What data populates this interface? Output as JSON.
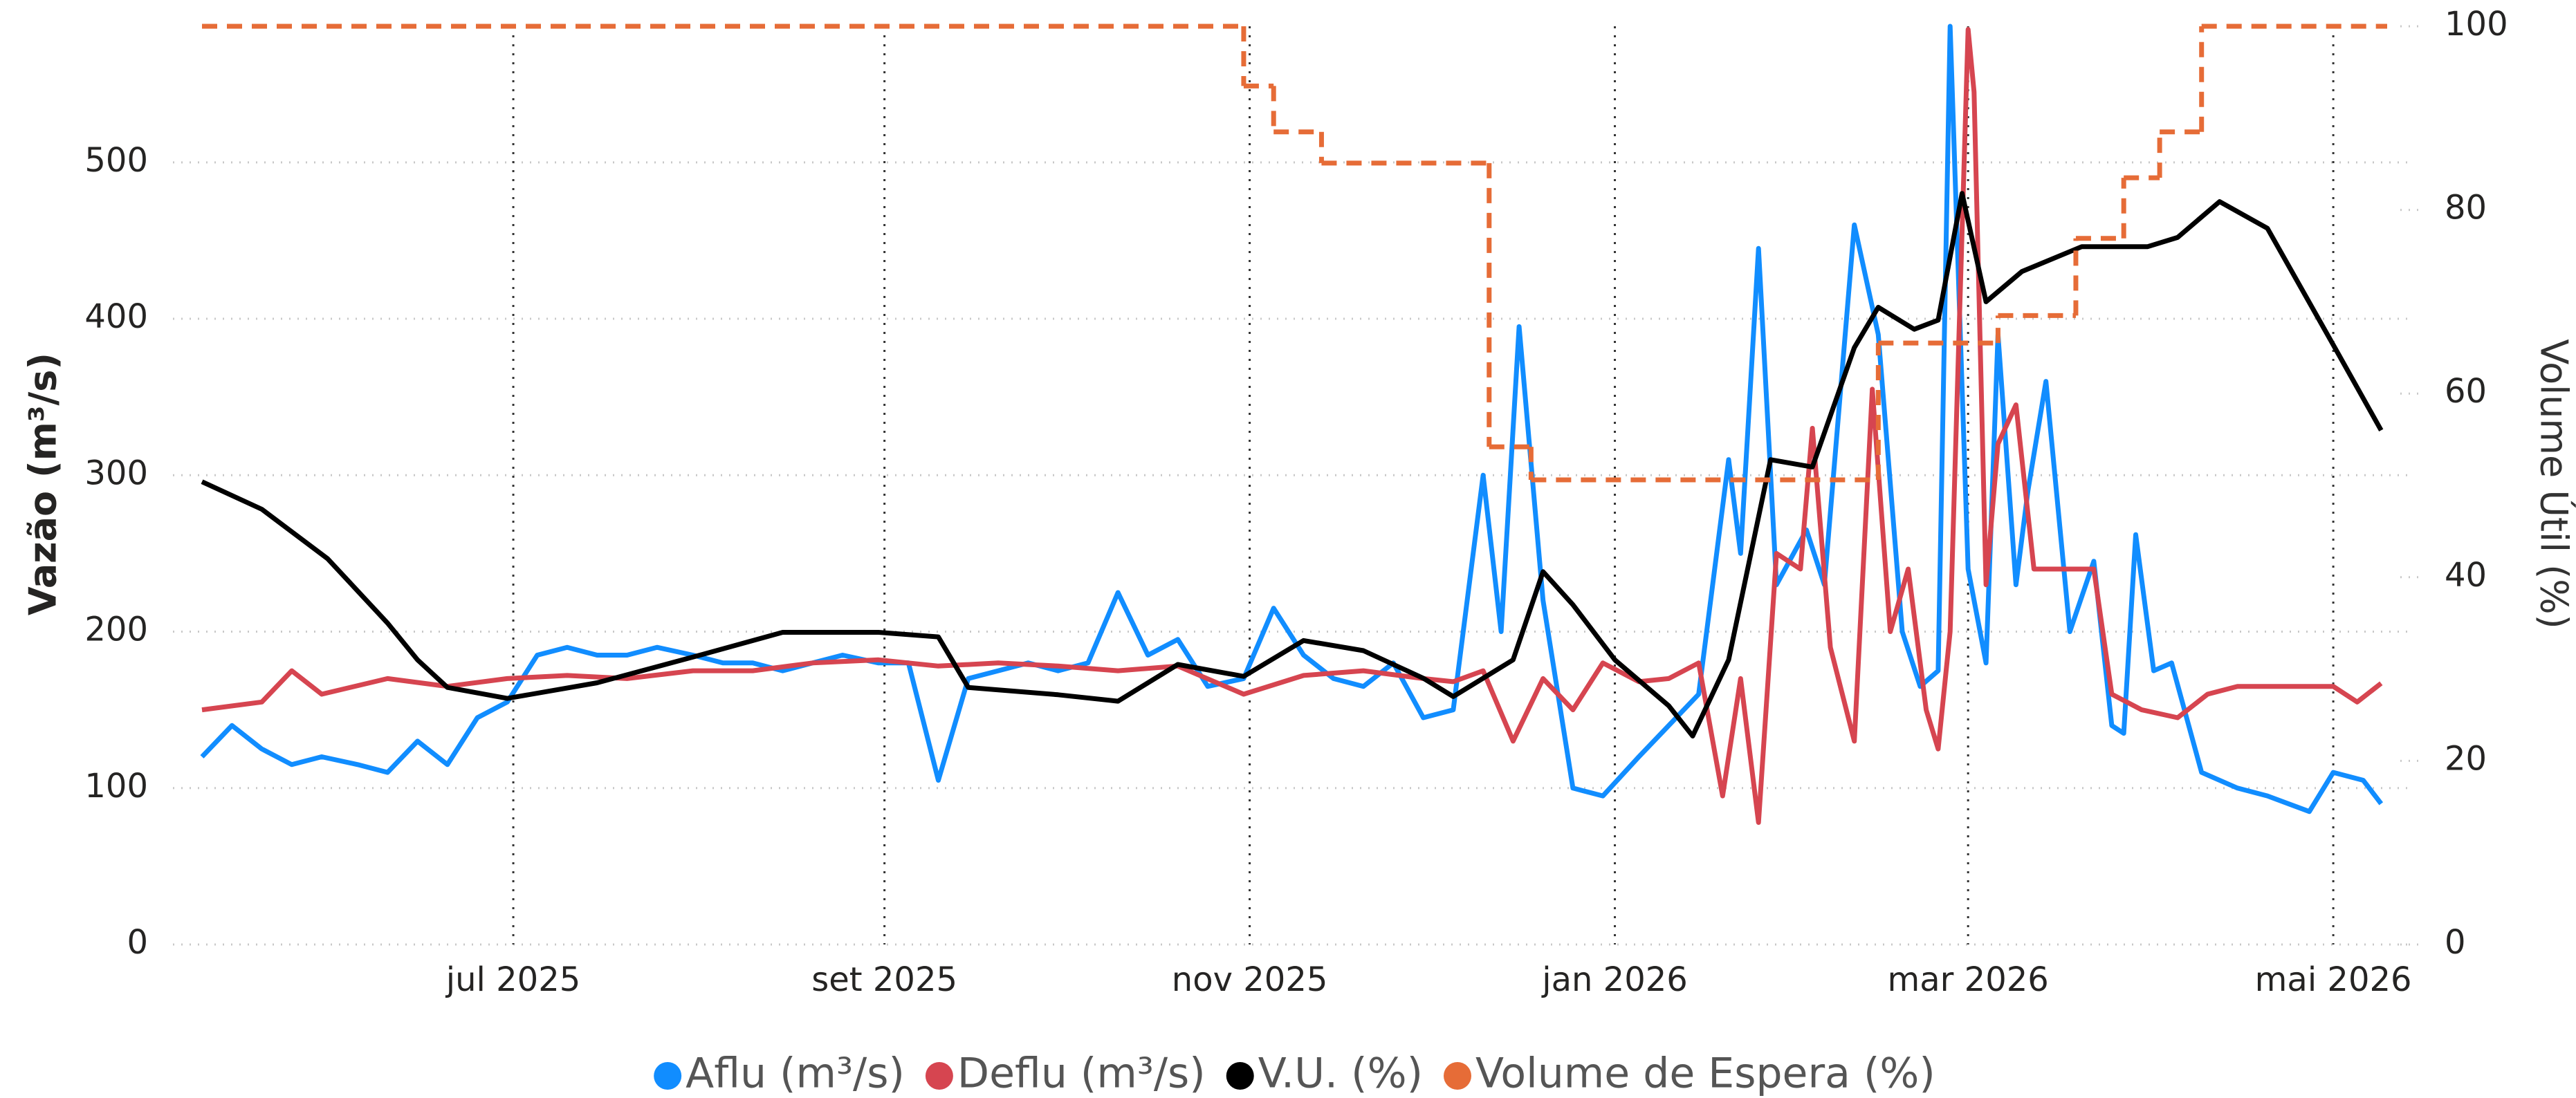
{
  "chart_data": {
    "type": "line",
    "ylabel": "Vazão (m³/s)",
    "y2label": "Volume Útil (%)",
    "xlim": [
      "2025-05-10",
      "2026-05-10"
    ],
    "xticks": [
      {
        "value": "2025-07-01",
        "label": "jul 2025"
      },
      {
        "value": "2025-09-01",
        "label": "set 2025"
      },
      {
        "value": "2025-11-01",
        "label": "nov 2025"
      },
      {
        "value": "2026-01-01",
        "label": "jan 2026"
      },
      {
        "value": "2026-03-01",
        "label": "mar 2026"
      },
      {
        "value": "2026-05-01",
        "label": "mai 2026"
      }
    ],
    "ylim": [
      0,
      587
    ],
    "yticks": [
      0,
      100,
      200,
      300,
      400,
      500
    ],
    "y2lim": [
      0,
      100
    ],
    "y2ticks": [
      0,
      20,
      40,
      60,
      80,
      100
    ],
    "grid": true,
    "legend": "bottom",
    "series": [
      {
        "name": "Aflu (m³/s)",
        "color": "#118DFF",
        "axis": "y",
        "x": [
          "2025-05-10",
          "2025-05-15",
          "2025-05-20",
          "2025-05-25",
          "2025-05-30",
          "2025-06-05",
          "2025-06-10",
          "2025-06-15",
          "2025-06-20",
          "2025-06-25",
          "2025-06-30",
          "2025-07-05",
          "2025-07-10",
          "2025-07-15",
          "2025-07-20",
          "2025-07-25",
          "2025-07-31",
          "2025-08-05",
          "2025-08-10",
          "2025-08-15",
          "2025-08-20",
          "2025-08-25",
          "2025-08-31",
          "2025-09-05",
          "2025-09-10",
          "2025-09-15",
          "2025-09-20",
          "2025-09-25",
          "2025-09-30",
          "2025-10-05",
          "2025-10-10",
          "2025-10-15",
          "2025-10-20",
          "2025-10-25",
          "2025-10-31",
          "2025-11-05",
          "2025-11-10",
          "2025-11-15",
          "2025-11-20",
          "2025-11-25",
          "2025-11-30",
          "2025-12-05",
          "2025-12-10",
          "2025-12-13",
          "2025-12-16",
          "2025-12-20",
          "2025-12-25",
          "2025-12-30",
          "2026-01-05",
          "2026-01-10",
          "2026-01-15",
          "2026-01-20",
          "2026-01-22",
          "2026-01-25",
          "2026-01-28",
          "2026-02-02",
          "2026-02-05",
          "2026-02-10",
          "2026-02-14",
          "2026-02-18",
          "2026-02-21",
          "2026-02-24",
          "2026-02-26",
          "2026-03-01",
          "2026-03-04",
          "2026-03-06",
          "2026-03-09",
          "2026-03-11",
          "2026-03-14",
          "2026-03-18",
          "2026-03-22",
          "2026-03-25",
          "2026-03-27",
          "2026-03-29",
          "2026-04-01",
          "2026-04-04",
          "2026-04-09",
          "2026-04-15",
          "2026-04-20",
          "2026-04-27",
          "2026-05-01",
          "2026-05-06",
          "2026-05-09"
        ],
        "values": [
          120,
          140,
          125,
          115,
          120,
          115,
          110,
          130,
          115,
          145,
          155,
          185,
          190,
          185,
          185,
          190,
          185,
          180,
          180,
          175,
          180,
          185,
          180,
          180,
          105,
          170,
          175,
          180,
          175,
          180,
          225,
          185,
          195,
          165,
          170,
          215,
          185,
          170,
          165,
          180,
          145,
          150,
          300,
          200,
          395,
          220,
          100,
          95,
          120,
          140,
          160,
          310,
          250,
          445,
          230,
          265,
          230,
          460,
          390,
          200,
          165,
          175,
          587,
          240,
          180,
          390,
          230,
          290,
          360,
          200,
          245,
          140,
          135,
          262,
          175,
          180,
          110,
          100,
          95,
          85,
          110,
          105,
          90
        ]
      },
      {
        "name": "Deflu (m³/s)",
        "color": "#D64550",
        "axis": "y",
        "x": [
          "2025-05-10",
          "2025-05-20",
          "2025-05-25",
          "2025-05-30",
          "2025-06-10",
          "2025-06-20",
          "2025-06-30",
          "2025-07-10",
          "2025-07-20",
          "2025-07-31",
          "2025-08-10",
          "2025-08-20",
          "2025-08-31",
          "2025-09-10",
          "2025-09-20",
          "2025-09-30",
          "2025-10-10",
          "2025-10-20",
          "2025-10-31",
          "2025-11-10",
          "2025-11-20",
          "2025-11-30",
          "2025-12-05",
          "2025-12-10",
          "2025-12-15",
          "2025-12-20",
          "2025-12-25",
          "2025-12-30",
          "2026-01-05",
          "2026-01-10",
          "2026-01-15",
          "2026-01-19",
          "2026-01-22",
          "2026-01-25",
          "2026-01-28",
          "2026-02-01",
          "2026-02-03",
          "2026-02-06",
          "2026-02-10",
          "2026-02-13",
          "2026-02-16",
          "2026-02-19",
          "2026-02-22",
          "2026-02-24",
          "2026-02-26",
          "2026-03-01",
          "2026-03-02",
          "2026-03-04",
          "2026-03-06",
          "2026-03-09",
          "2026-03-12",
          "2026-03-18",
          "2026-03-22",
          "2026-03-25",
          "2026-03-30",
          "2026-04-05",
          "2026-04-10",
          "2026-04-15",
          "2026-04-25",
          "2026-05-01",
          "2026-05-05",
          "2026-05-09"
        ],
        "values": [
          150,
          155,
          175,
          160,
          170,
          165,
          170,
          172,
          170,
          175,
          175,
          180,
          182,
          178,
          180,
          178,
          175,
          178,
          160,
          172,
          175,
          170,
          168,
          175,
          130,
          170,
          150,
          180,
          168,
          170,
          180,
          95,
          170,
          78,
          250,
          240,
          330,
          190,
          130,
          355,
          200,
          240,
          150,
          125,
          200,
          585,
          545,
          230,
          320,
          345,
          240,
          240,
          240,
          160,
          150,
          145,
          160,
          165,
          165,
          165,
          155,
          167
        ]
      },
      {
        "name": "V.U. (%)",
        "color": "#000000",
        "axis": "y2",
        "x": [
          "2025-05-10",
          "2025-05-20",
          "2025-05-31",
          "2025-06-10",
          "2025-06-15",
          "2025-06-20",
          "2025-06-30",
          "2025-07-15",
          "2025-07-31",
          "2025-08-15",
          "2025-08-31",
          "2025-09-10",
          "2025-09-15",
          "2025-09-30",
          "2025-10-10",
          "2025-10-20",
          "2025-10-31",
          "2025-11-10",
          "2025-11-20",
          "2025-11-30",
          "2025-12-05",
          "2025-12-10",
          "2025-12-15",
          "2025-12-20",
          "2025-12-25",
          "2026-01-01",
          "2026-01-10",
          "2026-01-14",
          "2026-01-20",
          "2026-01-27",
          "2026-02-03",
          "2026-02-10",
          "2026-02-14",
          "2026-02-20",
          "2026-02-24",
          "2026-02-28",
          "2026-03-04",
          "2026-03-10",
          "2026-03-20",
          "2026-03-31",
          "2026-04-05",
          "2026-04-12",
          "2026-04-20",
          "2026-05-01",
          "2026-05-09"
        ],
        "values": [
          50.4,
          47.4,
          42,
          35,
          31,
          28,
          26.8,
          28.5,
          31.3,
          34,
          34,
          33.5,
          28,
          27.2,
          26.5,
          30.5,
          29.2,
          33.1,
          32,
          29,
          27,
          29,
          31,
          40.6,
          37,
          31,
          26,
          22.7,
          31,
          52.8,
          52,
          65,
          69.4,
          67,
          68,
          81.8,
          70,
          73.3,
          76,
          76,
          77,
          80.9,
          78,
          65.3,
          56
        ]
      },
      {
        "name": "Volume de Espera (%)",
        "color": "#E66C37",
        "axis": "y2",
        "step": "post",
        "dash": true,
        "x": [
          "2025-05-10",
          "2025-10-31",
          "2025-11-05",
          "2025-11-13",
          "2025-12-11",
          "2025-12-18",
          "2026-02-14",
          "2026-03-06",
          "2026-03-19",
          "2026-03-27",
          "2026-04-02",
          "2026-04-09"
        ],
        "values": [
          100,
          93.5,
          88.5,
          85.1,
          54.2,
          50.6,
          65.5,
          68.5,
          76.9,
          83.5,
          88.5,
          100
        ]
      }
    ]
  }
}
